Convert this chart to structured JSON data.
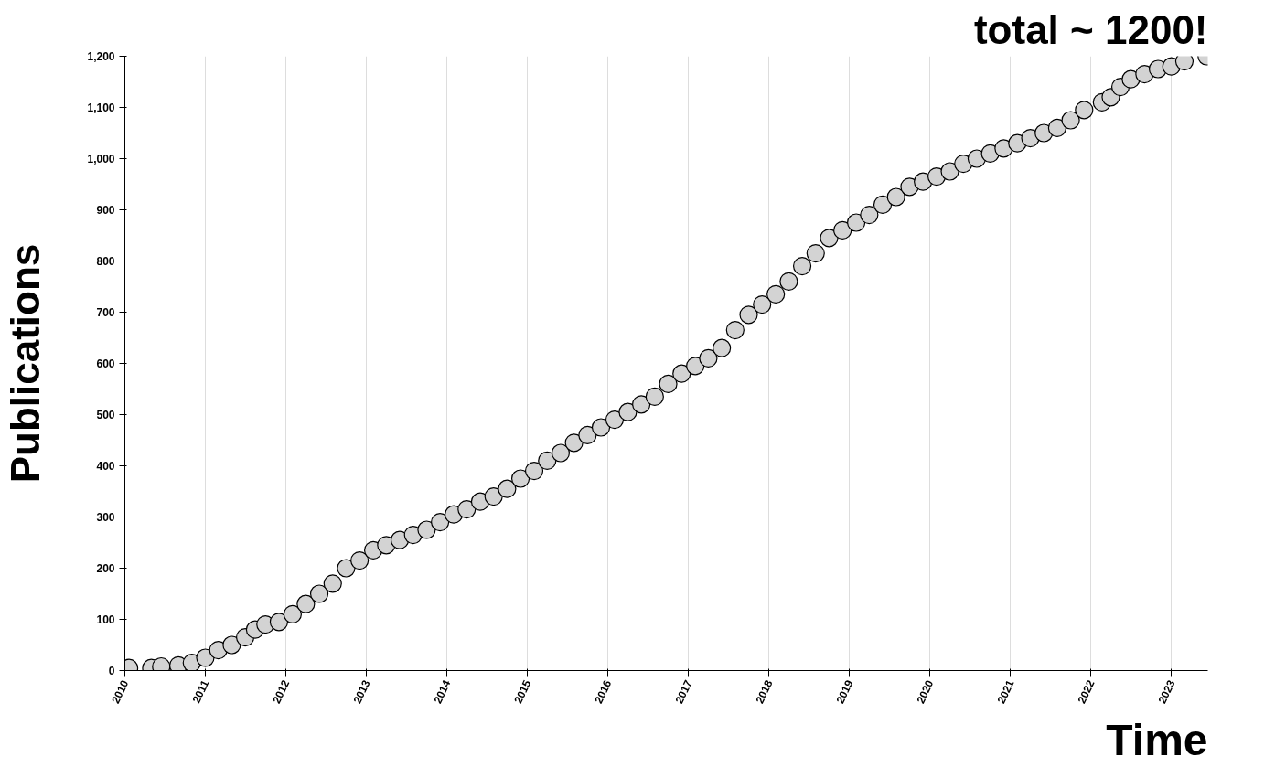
{
  "chart_data": {
    "type": "scatter",
    "title": "total ~ 1200!",
    "xlabel": "Time",
    "ylabel": "Publications",
    "x": [
      "2010-01-20",
      "2010-05-01",
      "2010-06-15",
      "2010-09-01",
      "2010-11-01",
      "2011-01-01",
      "2011-03-01",
      "2011-05-01",
      "2011-07-01",
      "2011-08-15",
      "2011-10-01",
      "2011-12-01",
      "2012-02-01",
      "2012-04-01",
      "2012-06-01",
      "2012-08-01",
      "2012-10-01",
      "2012-12-01",
      "2013-02-01",
      "2013-04-01",
      "2013-06-01",
      "2013-08-01",
      "2013-10-01",
      "2013-12-01",
      "2014-02-01",
      "2014-04-01",
      "2014-06-01",
      "2014-08-01",
      "2014-10-01",
      "2014-12-01",
      "2015-02-01",
      "2015-04-01",
      "2015-06-01",
      "2015-08-01",
      "2015-10-01",
      "2015-12-01",
      "2016-02-01",
      "2016-04-01",
      "2016-06-01",
      "2016-08-01",
      "2016-10-01",
      "2016-12-01",
      "2017-02-01",
      "2017-04-01",
      "2017-06-01",
      "2017-08-01",
      "2017-10-01",
      "2017-12-01",
      "2018-02-01",
      "2018-04-01",
      "2018-06-01",
      "2018-08-01",
      "2018-10-01",
      "2018-12-01",
      "2019-02-01",
      "2019-04-01",
      "2019-06-01",
      "2019-08-01",
      "2019-10-01",
      "2019-12-01",
      "2020-02-01",
      "2020-04-01",
      "2020-06-01",
      "2020-08-01",
      "2020-10-01",
      "2020-12-01",
      "2021-02-01",
      "2021-04-01",
      "2021-06-01",
      "2021-08-01",
      "2021-10-01",
      "2021-12-01",
      "2022-02-20",
      "2022-04-01",
      "2022-05-15",
      "2022-07-01",
      "2022-09-01",
      "2022-11-01",
      "2023-01-01",
      "2023-03-01",
      "2023-06-10"
    ],
    "series": [
      {
        "color": "#d3d3d3",
        "values": [
          5,
          5,
          8,
          10,
          15,
          25,
          40,
          50,
          65,
          80,
          90,
          95,
          110,
          130,
          150,
          170,
          200,
          215,
          235,
          245,
          255,
          265,
          275,
          290,
          305,
          315,
          330,
          340,
          355,
          375,
          390,
          410,
          425,
          445,
          460,
          475,
          490,
          505,
          520,
          535,
          560,
          580,
          595,
          610,
          630,
          665,
          695,
          715,
          735,
          760,
          790,
          815,
          845,
          860,
          875,
          890,
          910,
          925,
          945,
          955,
          965,
          975,
          990,
          1000,
          1010,
          1020,
          1030,
          1040,
          1050,
          1060,
          1075,
          1095,
          1110,
          1120,
          1140,
          1155,
          1165,
          1175,
          1180,
          1190,
          1200
        ]
      }
    ],
    "xlim": [
      "2010-01-01",
      "2023-06-15"
    ],
    "xticks": [
      "2010",
      "2011",
      "2012",
      "2013",
      "2014",
      "2015",
      "2016",
      "2017",
      "2018",
      "2019",
      "2020",
      "2021",
      "2022",
      "2023"
    ],
    "ylim": [
      0,
      1200
    ],
    "yticks": [
      0,
      100,
      200,
      300,
      400,
      500,
      600,
      700,
      800,
      900,
      {
        "value": 1000,
        "label": "1,000"
      },
      {
        "value": 1100,
        "label": "1,100"
      },
      {
        "value": 1200,
        "label": "1,200"
      }
    ],
    "grid": "x",
    "marker": "circle"
  }
}
